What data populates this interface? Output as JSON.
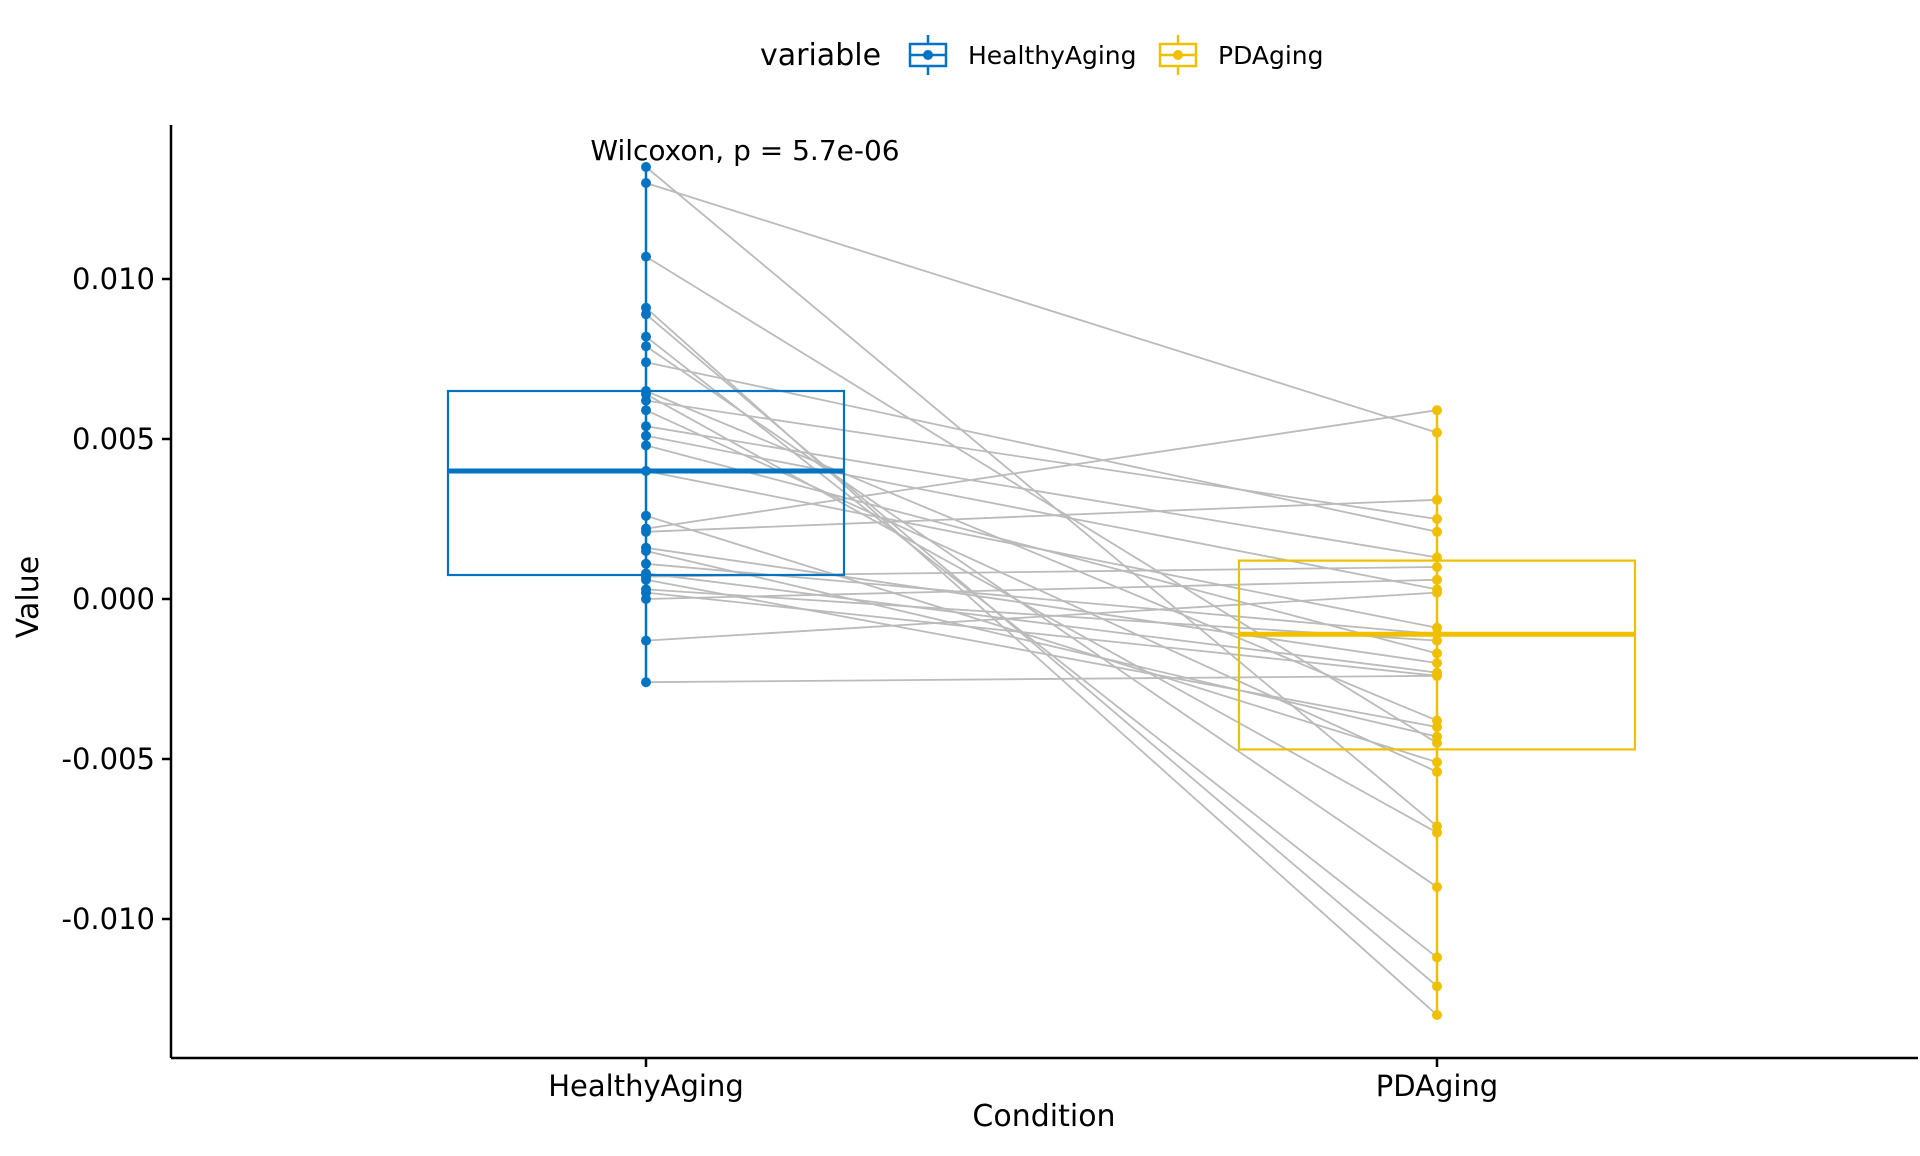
{
  "chart_data": {
    "type": "box",
    "subtype": "paired boxplot with connecting lines",
    "xlabel": "Condition",
    "ylabel": "Value",
    "categories": [
      "HealthyAging",
      "PDAging"
    ],
    "ylim": [
      -0.0145,
      0.0145
    ],
    "yticks": [
      -0.01,
      -0.005,
      0.0,
      0.005,
      0.01
    ],
    "ytick_labels": [
      "-0.010",
      "-0.005",
      "0.000",
      "0.005",
      "0.010"
    ],
    "grid": false,
    "legend": {
      "title": "variable",
      "position": "top",
      "entries": [
        "HealthyAging",
        "PDAging"
      ]
    },
    "annotation": "Wilcoxon, p = 5.7e-06",
    "colors": {
      "HealthyAging": "#0073C2",
      "PDAging": "#EFC000",
      "pair_line": "#BBBBBB"
    },
    "boxes": [
      {
        "name": "HealthyAging",
        "q1": 0.00075,
        "median": 0.004,
        "q3": 0.0065,
        "whisker_low": -0.0026,
        "whisker_high": 0.0135
      },
      {
        "name": "PDAging",
        "q1": -0.0047,
        "median": -0.0011,
        "q3": 0.0012,
        "whisker_low": -0.013,
        "whisker_high": 0.0059
      }
    ],
    "pairs": [
      {
        "healthy": 0.0135,
        "pd": -0.0071
      },
      {
        "healthy": 0.013,
        "pd": 0.0052
      },
      {
        "healthy": 0.0107,
        "pd": -0.0045
      },
      {
        "healthy": 0.0091,
        "pd": -0.013
      },
      {
        "healthy": 0.0089,
        "pd": -0.0121
      },
      {
        "healthy": 0.0082,
        "pd": -0.0112
      },
      {
        "healthy": 0.0079,
        "pd": -0.009
      },
      {
        "healthy": 0.0074,
        "pd": 0.0021
      },
      {
        "healthy": 0.0065,
        "pd": -0.0038
      },
      {
        "healthy": 0.0064,
        "pd": -0.0073
      },
      {
        "healthy": 0.0062,
        "pd": 0.0025
      },
      {
        "healthy": 0.0059,
        "pd": -0.0054
      },
      {
        "healthy": 0.0054,
        "pd": 0.0013
      },
      {
        "healthy": 0.0051,
        "pd": 0.0003
      },
      {
        "healthy": 0.0048,
        "pd": -0.0017
      },
      {
        "healthy": 0.004,
        "pd": -0.0009
      },
      {
        "healthy": 0.0026,
        "pd": -0.0051
      },
      {
        "healthy": 0.0022,
        "pd": 0.0059
      },
      {
        "healthy": 0.0021,
        "pd": 0.0031
      },
      {
        "healthy": 0.0016,
        "pd": -0.002
      },
      {
        "healthy": 0.0015,
        "pd": -0.0043
      },
      {
        "healthy": 0.0011,
        "pd": -0.0011
      },
      {
        "healthy": 0.0008,
        "pd": -0.0023
      },
      {
        "healthy": 0.0007,
        "pd": 0.001
      },
      {
        "healthy": 0.0006,
        "pd": -0.004
      },
      {
        "healthy": 0.0003,
        "pd": -0.0013
      },
      {
        "healthy": 0.0002,
        "pd": -0.0024
      },
      {
        "healthy": 0.0,
        "pd": 0.0006
      },
      {
        "healthy": -0.0013,
        "pd": 0.0002
      },
      {
        "healthy": -0.0026,
        "pd": -0.0024
      }
    ]
  }
}
